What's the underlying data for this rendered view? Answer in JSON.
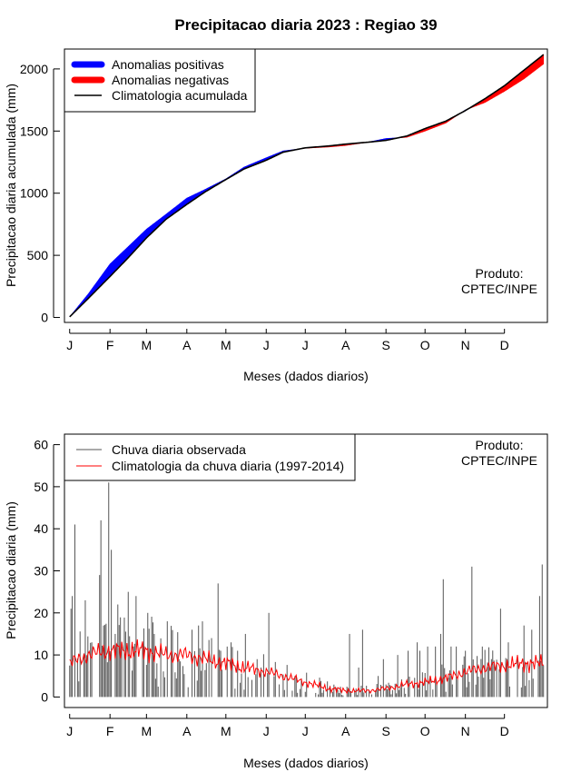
{
  "chart_data": [
    {
      "type": "area",
      "title": "Precipitacao diaria 2023 : Regiao 39",
      "xlabel": "Meses (dados diarios)",
      "ylabel": "Precipitacao diaria acumulada (mm)",
      "month_ticks": [
        "J",
        "F",
        "M",
        "A",
        "M",
        "J",
        "J",
        "A",
        "S",
        "O",
        "N",
        "D"
      ],
      "month_start_days": [
        1,
        32,
        60,
        91,
        121,
        152,
        182,
        213,
        244,
        274,
        305,
        335
      ],
      "y_ticks": [
        0,
        500,
        1000,
        1500,
        2000
      ],
      "xlim": [
        -3,
        368
      ],
      "ylim": [
        -40,
        2160
      ],
      "legend": [
        "Anomalias positivas",
        "Anomalias negativas",
        "Climatologia acumulada"
      ],
      "legend_colors": [
        "#0000ff",
        "#ff0000",
        "#000000"
      ],
      "credit_line1": "Produto:",
      "credit_line2": "CPTEC/INPE",
      "day": [
        1,
        15,
        32,
        45,
        60,
        75,
        91,
        105,
        121,
        135,
        152,
        165,
        182,
        200,
        213,
        230,
        244,
        260,
        274,
        290,
        305,
        320,
        335,
        350,
        365
      ],
      "climatology_cumulative": [
        5,
        150,
        330,
        470,
        640,
        790,
        910,
        1010,
        1110,
        1195,
        1265,
        1330,
        1365,
        1380,
        1395,
        1410,
        1425,
        1460,
        1520,
        1580,
        1665,
        1760,
        1865,
        1990,
        2115
      ],
      "observed_cumulative": [
        5,
        185,
        430,
        560,
        710,
        830,
        960,
        1030,
        1115,
        1210,
        1285,
        1340,
        1362,
        1372,
        1384,
        1410,
        1440,
        1450,
        1500,
        1565,
        1670,
        1730,
        1820,
        1920,
        2040
      ]
    },
    {
      "type": "line",
      "xlabel": "Meses (dados diarios)",
      "ylabel": "Precipitacao diaria (mm)",
      "month_ticks": [
        "J",
        "F",
        "M",
        "A",
        "M",
        "J",
        "J",
        "A",
        "S",
        "O",
        "N",
        "D"
      ],
      "month_start_days": [
        1,
        32,
        60,
        91,
        121,
        152,
        182,
        213,
        244,
        274,
        305,
        335
      ],
      "y_ticks": [
        0,
        10,
        20,
        30,
        40,
        50,
        60
      ],
      "xlim": [
        -3,
        368
      ],
      "ylim": [
        -2.5,
        62.5
      ],
      "legend": [
        "Chuva diaria observada",
        "Climatologia da chuva diaria (1997-2014)"
      ],
      "legend_colors": [
        "#555555",
        "#ff0000"
      ],
      "credit_line1": "Produto:",
      "credit_line2": "CPTEC/INPE",
      "climatology_day": [
        1,
        15,
        30,
        45,
        60,
        75,
        91,
        105,
        121,
        135,
        152,
        165,
        182,
        200,
        213,
        230,
        244,
        260,
        274,
        290,
        305,
        320,
        335,
        350,
        365
      ],
      "climatology_daily": [
        8,
        10,
        11,
        11,
        11,
        10,
        10,
        9,
        8,
        7,
        6,
        5,
        3.5,
        2,
        1.5,
        1.5,
        2,
        3,
        3.5,
        4.5,
        6,
        7,
        7.5,
        8,
        8
      ],
      "observed_peaks_day": [
        2,
        3,
        5,
        13,
        18,
        24,
        25,
        27,
        31,
        33,
        36,
        38,
        46,
        50,
        52,
        61,
        66,
        68,
        76,
        85,
        95,
        100,
        103,
        110,
        115,
        117,
        125,
        130,
        136,
        145,
        148,
        154,
        162,
        172,
        176,
        195,
        210,
        216,
        223,
        226,
        238,
        242,
        253,
        261,
        268,
        270,
        276,
        282,
        286,
        288,
        294,
        298,
        305,
        310,
        318,
        325,
        332,
        338,
        345,
        350,
        356,
        362,
        364
      ],
      "observed_peaks_mm": [
        21,
        24,
        41,
        23,
        13,
        29,
        42,
        17,
        51,
        35,
        15,
        22,
        25,
        12,
        24,
        20,
        15,
        8,
        18,
        9,
        16,
        17,
        18,
        14,
        27,
        11,
        13,
        11,
        15,
        9,
        7,
        20,
        3,
        1.5,
        1,
        1,
        0.5,
        15,
        7,
        16,
        5,
        9,
        10,
        11,
        13,
        11,
        12,
        12,
        15,
        28,
        12,
        12,
        11,
        31,
        12,
        9,
        21,
        13,
        10,
        17,
        16,
        24,
        31.5
      ]
    }
  ]
}
